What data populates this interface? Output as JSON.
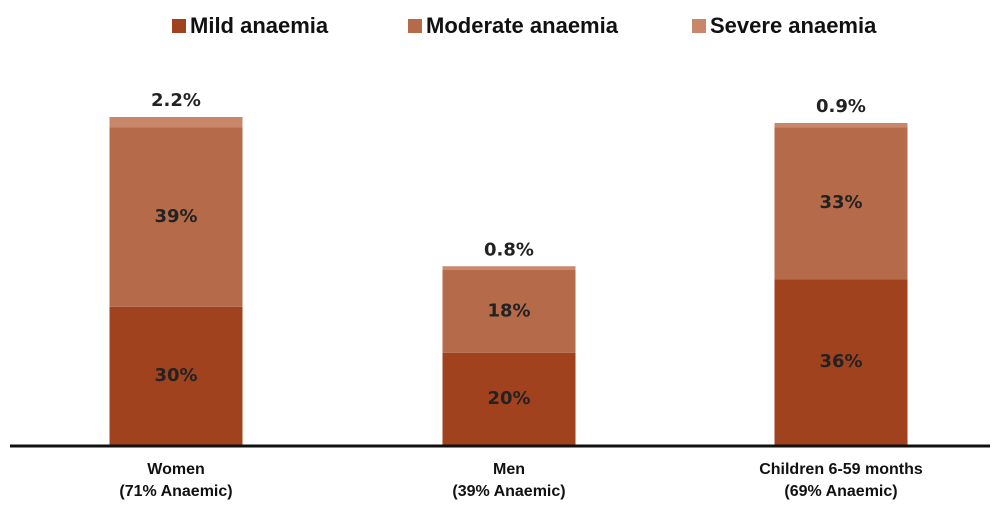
{
  "chart_data": {
    "type": "stacked_bar",
    "categories": [
      "Women\n(71% Anaemic)",
      "Men\n(39% Anaemic)",
      "Children 6-59 months\n(69% Anaemic)"
    ],
    "series": [
      {
        "name": "Mild anaemia",
        "color": "#a1421e",
        "values": [
          30,
          20,
          36
        ],
        "value_labels": [
          "30%",
          "20%",
          "36%"
        ]
      },
      {
        "name": "Moderate anaemia",
        "color": "#b56a4a",
        "values": [
          39,
          18,
          33
        ],
        "value_labels": [
          "39%",
          "18%",
          "33%"
        ]
      },
      {
        "name": "Severe anaemia",
        "color": "#c8876b",
        "values": [
          2.2,
          0.8,
          0.9
        ],
        "value_labels": [
          "2.2%",
          "0.8%",
          "0.9%"
        ]
      }
    ],
    "legend": "top"
  }
}
